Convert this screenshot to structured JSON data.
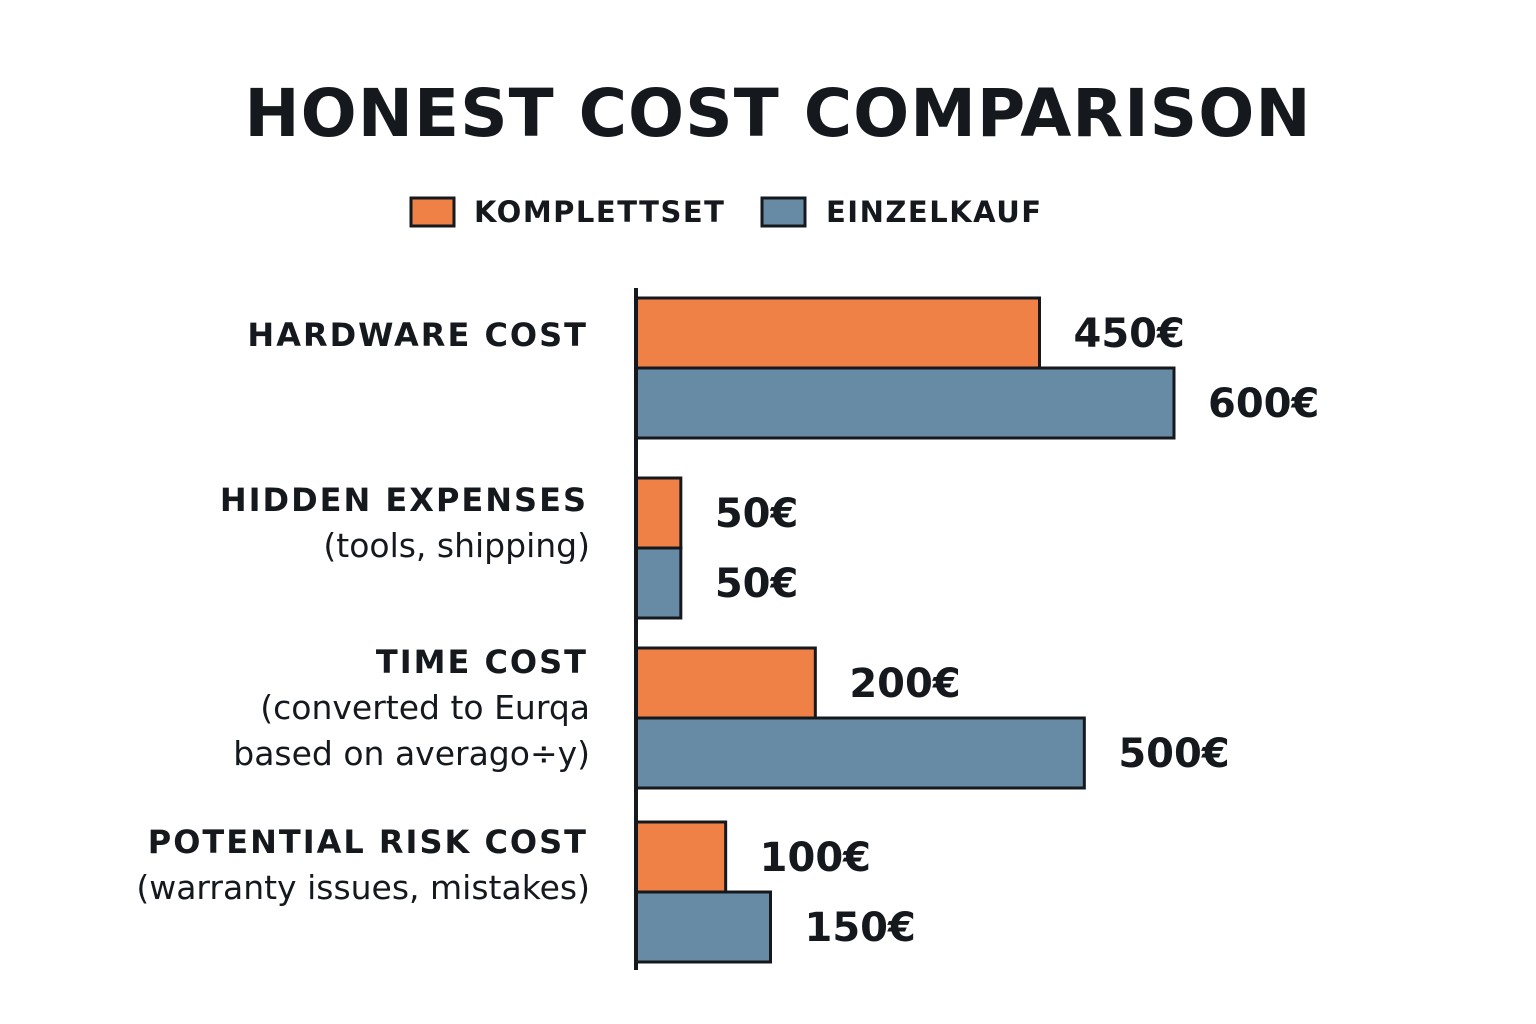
{
  "chart_data": {
    "type": "bar",
    "orientation": "horizontal",
    "title": "HONEST COST COMPARISON",
    "xlim": [
      0,
      600
    ],
    "grid": false,
    "legend_position": "top-center",
    "series": [
      {
        "name": "KOMPLETTSET",
        "color": "#ef8147",
        "values": [
          450,
          50,
          200,
          100
        ]
      },
      {
        "name": "EINZELKAUF",
        "color": "#678ba4",
        "values": [
          600,
          50,
          500,
          150
        ]
      }
    ],
    "value_labels": [
      [
        "450€",
        "50€",
        "200€",
        "100€"
      ],
      [
        "600€",
        "50€",
        "500€",
        "150€"
      ]
    ],
    "categories": [
      {
        "title": "HARDWARE COST",
        "subtitle": []
      },
      {
        "title": "HIDDEN EXPENSES",
        "subtitle": [
          "(tools, shipping)"
        ]
      },
      {
        "title": "TIME COST",
        "subtitle": [
          "(converted to Eurqa",
          "based on averago÷y)"
        ]
      },
      {
        "title": "POTENTIAL RISK COST",
        "subtitle": [
          "(warranty issues, mistakes)"
        ]
      }
    ]
  },
  "colors": {
    "outline": "#15191e",
    "text": "#15191e"
  }
}
